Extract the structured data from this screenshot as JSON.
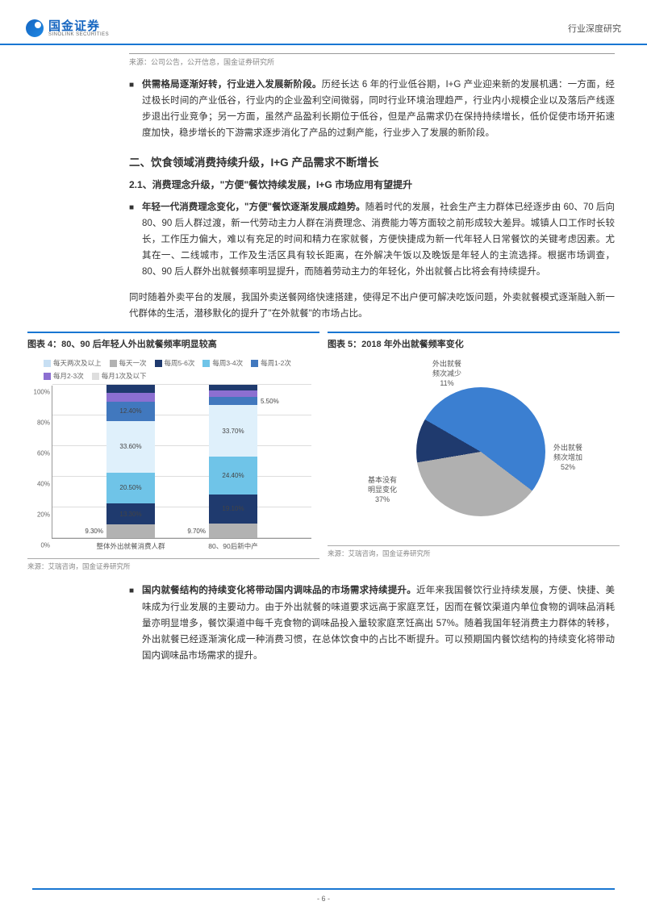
{
  "header": {
    "logo_cn": "国金证券",
    "logo_en": "SINOLINK SECURITIES",
    "doc_type": "行业深度研究"
  },
  "top_source": "来源：公司公告，公开信息，国金证券研究所",
  "para1_bold": "供需格局逐渐好转，行业进入发展新阶段。",
  "para1_rest": "历经长达 6 年的行业低谷期，I+G 产业迎来新的发展机遇：一方面，经过极长时间的产业低谷，行业内的企业盈利空间微弱，同时行业环境治理趋严，行业内小规模企业以及落后产线逐步退出行业竞争；另一方面，虽然产品盈利长期位于低谷，但是产品需求仍在保持持续增长，低价促使市场开拓速度加快，稳步增长的下游需求逐步消化了产品的过剩产能，行业步入了发展的新阶段。",
  "h_section": "二、饮食领域消费持续升级，I+G 产品需求不断增长",
  "h_sub": "2.1、消费理念升级，\"方便\"餐饮持续发展，I+G 市场应用有望提升",
  "para2_bold": "年轻一代消费理念变化，\"方便\"餐饮逐渐发展成趋势。",
  "para2_rest": "随着时代的发展，社会生产主力群体已经逐步由 60、70 后向 80、90 后人群过渡，新一代劳动主力人群在消费理念、消费能力等方面较之前形成较大差异。城镇人口工作时长较长，工作压力偏大，难以有充足的时间和精力在家就餐，方便快捷成为新一代年轻人日常餐饮的关键考虑因素。尤其在一、二线城市，工作及生活区具有较长距离，在外解决午饭以及晚饭是年轻人的主流选择。根据市场调查，80、90 后人群外出就餐频率明显提升，而随着劳动主力的年轻化，外出就餐占比将会有持续提升。",
  "para3": "同时随着外卖平台的发展，我国外卖送餐网络快速搭建，使得足不出户便可解决吃饭问题，外卖就餐模式逐渐融入新一代群体的生活，潜移默化的提升了\"在外就餐\"的市场占比。",
  "chart4": {
    "title": "图表 4：80、90 后年轻人外出就餐频率明显较高",
    "type": "stacked_bar",
    "legend": [
      {
        "label": "每天两次及以上",
        "color": "#c7dff3"
      },
      {
        "label": "每天一次",
        "color": "#b2b2b2"
      },
      {
        "label": "每周5-6次",
        "color": "#1f3a6e"
      },
      {
        "label": "每周3-4次",
        "color": "#6fc4e8"
      },
      {
        "label": "每周1-2次",
        "color": "#4178be"
      },
      {
        "label": "每月2-3次",
        "color": "#8c6fd1"
      },
      {
        "label": "每月1次及以下",
        "color": "#dedede"
      }
    ],
    "ylim": [
      0,
      100
    ],
    "ytick_step": 20,
    "categories": [
      "整体外出就餐消费人群",
      "80、90后新中产"
    ],
    "series": {
      "整体外出就餐消费人群": [
        {
          "label": "9.30%",
          "value": 9.3,
          "color": "#b2b2b2",
          "pos": "left"
        },
        {
          "label": "13.30%",
          "value": 13.3,
          "color": "#1f3a6e",
          "textcolor": "#fff"
        },
        {
          "label": "20.50%",
          "value": 20.5,
          "color": "#6fc4e8"
        },
        {
          "label": "33.60%",
          "value": 33.6,
          "color": "#dff0fb"
        },
        {
          "label": "12.40%",
          "value": 12.4,
          "color": "#4178be",
          "textcolor": "#fff"
        },
        {
          "label": "",
          "value": 6.0,
          "color": "#8c6fd1"
        },
        {
          "label": "",
          "value": 4.9,
          "color": "#1f3a6e"
        }
      ],
      "80、90后新中产": [
        {
          "label": "9.70%",
          "value": 9.7,
          "color": "#b2b2b2",
          "pos": "left"
        },
        {
          "label": "19.10%",
          "value": 19.1,
          "color": "#1f3a6e",
          "textcolor": "#fff"
        },
        {
          "label": "24.40%",
          "value": 24.4,
          "color": "#6fc4e8"
        },
        {
          "label": "33.70%",
          "value": 33.7,
          "color": "#dff0fb"
        },
        {
          "label": "5.50%",
          "value": 5.5,
          "color": "#4178be",
          "pos": "right",
          "textcolor": "#fff"
        },
        {
          "label": "",
          "value": 4.0,
          "color": "#8c6fd1"
        },
        {
          "label": "",
          "value": 3.6,
          "color": "#1f3a6e"
        }
      ]
    },
    "source": "来源：艾瑞咨询，国金证券研究所"
  },
  "chart5": {
    "title": "图表 5：2018 年外出就餐频率变化",
    "type": "pie",
    "slices": [
      {
        "label": "外出就餐频次增加",
        "short": "外出就餐\n频次增加",
        "pct": 52,
        "color": "#3b7fd1"
      },
      {
        "label": "基本没有明显变化",
        "short": "基本没有\n明显变化",
        "pct": 37,
        "color": "#b0b0b0"
      },
      {
        "label": "外出就餐频次减少",
        "short": "外出就餐\n频次减少",
        "pct": 11,
        "color": "#1f3a6e"
      }
    ],
    "source": "来源：艾瑞咨询，国金证券研究所"
  },
  "para4_bold": "国内就餐结构的持续变化将带动国内调味品的市场需求持续提升。",
  "para4_rest": "近年来我国餐饮行业持续发展，方便、快捷、美味成为行业发展的主要动力。由于外出就餐的味道要求远高于家庭烹饪，因而在餐饮渠道内单位食物的调味品消耗量亦明显增多，餐饮渠道中每千克食物的调味品投入量较家庭烹饪高出 57%。随着我国年轻消费主力群体的转移，外出就餐已经逐渐演化成一种消费习惯，在总体饮食中的占比不断提升。可以预期国内餐饮结构的持续变化将带动国内调味品市场需求的提升。",
  "page_num": "- 6 -"
}
